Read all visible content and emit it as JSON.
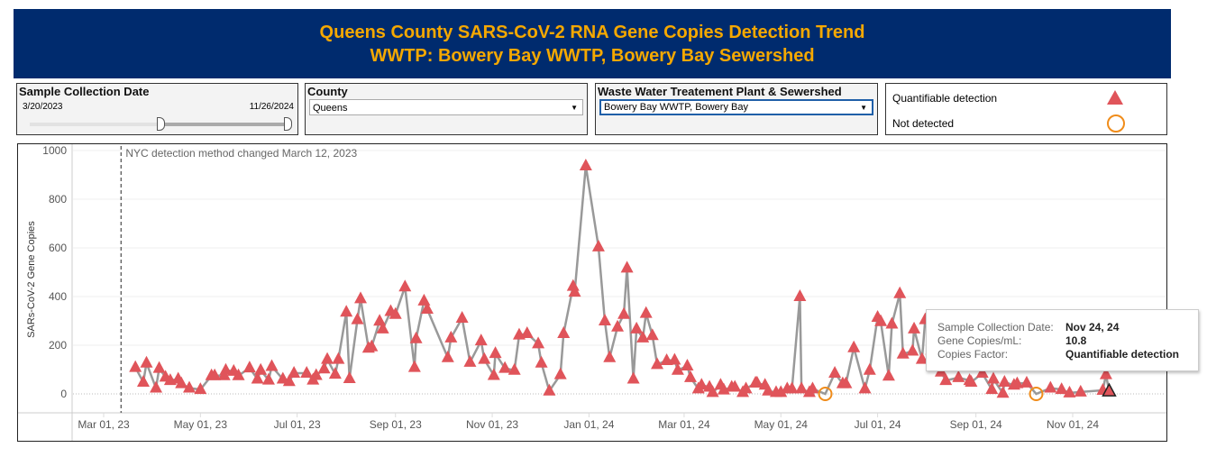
{
  "header": {
    "title_line1": "Queens County SARS-CoV-2 RNA Gene Copies Detection Trend",
    "title_line2": "WWTP: Bowery Bay WWTP, Bowery Bay Sewershed"
  },
  "filters": {
    "date": {
      "label": "Sample Collection Date",
      "start": "3/20/2023",
      "end": "11/26/2024",
      "selected_fraction_start": 0.5,
      "selected_fraction_end": 1.0
    },
    "county": {
      "label": "County",
      "value": "Queens"
    },
    "wwtp": {
      "label": "Waste Water Treatement Plant & Sewershed",
      "value": "Bowery Bay WWTP, Bowery Bay"
    }
  },
  "legend": {
    "items": [
      {
        "label": "Quantifiable detection",
        "code": "q"
      },
      {
        "label": "Not detected",
        "code": "nd"
      }
    ]
  },
  "colors": {
    "header_bg": "#002b6e",
    "title": "#f5a800",
    "triangle": "#e0545a",
    "circle": "#f08c1a",
    "line": "#999999"
  },
  "tooltip": {
    "date_label": "Sample Collection Date:",
    "date_value": "Nov 24, 24",
    "copies_label": "Gene Copies/mL:",
    "copies_value": "10.8",
    "factor_label": "Copies Factor:",
    "factor_value": "Quantifiable detection"
  },
  "chart_data": {
    "type": "line",
    "ylabel": "SARs-CoV-2 Gene Copies",
    "xlabel": "",
    "ylim": [
      0,
      1000
    ],
    "yticks": [
      0,
      200,
      400,
      600,
      800,
      1000
    ],
    "xticks": [
      {
        "date": "2023-03-01",
        "label": "Mar 01, 23"
      },
      {
        "date": "2023-05-01",
        "label": "May 01, 23"
      },
      {
        "date": "2023-07-01",
        "label": "Jul 01, 23"
      },
      {
        "date": "2023-09-01",
        "label": "Sep 01, 23"
      },
      {
        "date": "2023-11-01",
        "label": "Nov 01, 23"
      },
      {
        "date": "2024-01-01",
        "label": "Jan 01, 24"
      },
      {
        "date": "2024-03-01",
        "label": "Mar 01, 24"
      },
      {
        "date": "2024-05-01",
        "label": "May 01, 24"
      },
      {
        "date": "2024-07-01",
        "label": "Jul 01, 24"
      },
      {
        "date": "2024-09-01",
        "label": "Sep 01, 24"
      },
      {
        "date": "2024-11-01",
        "label": "Nov 01, 24"
      }
    ],
    "annotation": {
      "date": "2023-03-12",
      "text": "NYC detection method changed March 12, 2023"
    },
    "highlighted": "2024-11-24",
    "points": [
      [
        "2023-03-21",
        109,
        "q"
      ],
      [
        "2023-03-26",
        48,
        "q"
      ],
      [
        "2023-03-28",
        127,
        "q"
      ],
      [
        "2023-04-03",
        24,
        "q"
      ],
      [
        "2023-04-05",
        105,
        "q"
      ],
      [
        "2023-04-09",
        69,
        "q"
      ],
      [
        "2023-04-12",
        55,
        "q"
      ],
      [
        "2023-04-17",
        61,
        "q"
      ],
      [
        "2023-04-19",
        42,
        "q"
      ],
      [
        "2023-04-24",
        24,
        "q"
      ],
      [
        "2023-05-01",
        18,
        "q"
      ],
      [
        "2023-05-08",
        75,
        "q"
      ],
      [
        "2023-05-10",
        75,
        "q"
      ],
      [
        "2023-05-16",
        75,
        "q"
      ],
      [
        "2023-05-17",
        97,
        "q"
      ],
      [
        "2023-05-22",
        93,
        "q"
      ],
      [
        "2023-05-25",
        75,
        "q"
      ],
      [
        "2023-06-01",
        107,
        "q"
      ],
      [
        "2023-06-06",
        61,
        "q"
      ],
      [
        "2023-06-08",
        97,
        "q"
      ],
      [
        "2023-06-13",
        57,
        "q"
      ],
      [
        "2023-06-15",
        113,
        "q"
      ],
      [
        "2023-06-22",
        61,
        "q"
      ],
      [
        "2023-06-26",
        51,
        "q"
      ],
      [
        "2023-06-29",
        85,
        "q"
      ],
      [
        "2023-07-07",
        85,
        "q"
      ],
      [
        "2023-07-11",
        57,
        "q"
      ],
      [
        "2023-07-13",
        76,
        "q"
      ],
      [
        "2023-07-18",
        103,
        "q"
      ],
      [
        "2023-07-20",
        142,
        "q"
      ],
      [
        "2023-07-25",
        81,
        "q"
      ],
      [
        "2023-07-27",
        142,
        "q"
      ],
      [
        "2023-08-01",
        336,
        "q"
      ],
      [
        "2023-08-03",
        63,
        "q"
      ],
      [
        "2023-08-08",
        305,
        "q"
      ],
      [
        "2023-08-10",
        391,
        "q"
      ],
      [
        "2023-08-15",
        188,
        "q"
      ],
      [
        "2023-08-17",
        194,
        "q"
      ],
      [
        "2023-08-22",
        299,
        "q"
      ],
      [
        "2023-08-24",
        267,
        "q"
      ],
      [
        "2023-08-29",
        339,
        "q"
      ],
      [
        "2023-09-01",
        327,
        "q"
      ],
      [
        "2023-09-07",
        440,
        "q"
      ],
      [
        "2023-09-13",
        109,
        "q"
      ],
      [
        "2023-09-14",
        227,
        "q"
      ],
      [
        "2023-09-19",
        382,
        "q"
      ],
      [
        "2023-09-21",
        348,
        "q"
      ],
      [
        "2023-10-04",
        149,
        "q"
      ],
      [
        "2023-10-06",
        230,
        "q"
      ],
      [
        "2023-10-13",
        311,
        "q"
      ],
      [
        "2023-10-18",
        130,
        "q"
      ],
      [
        "2023-10-25",
        218,
        "q"
      ],
      [
        "2023-10-27",
        142,
        "q"
      ],
      [
        "2023-11-02",
        76,
        "q"
      ],
      [
        "2023-11-03",
        166,
        "q"
      ],
      [
        "2023-11-09",
        105,
        "q"
      ],
      [
        "2023-11-15",
        97,
        "q"
      ],
      [
        "2023-11-18",
        242,
        "q"
      ],
      [
        "2023-11-23",
        248,
        "q"
      ],
      [
        "2023-11-30",
        206,
        "q"
      ],
      [
        "2023-12-02",
        127,
        "q"
      ],
      [
        "2023-12-07",
        12,
        "q"
      ],
      [
        "2023-12-14",
        79,
        "q"
      ],
      [
        "2023-12-16",
        248,
        "q"
      ],
      [
        "2023-12-22",
        442,
        "q"
      ],
      [
        "2023-12-23",
        418,
        "q"
      ],
      [
        "2023-12-30",
        937,
        "q"
      ],
      [
        "2024-01-07",
        604,
        "q"
      ],
      [
        "2024-01-11",
        300,
        "q"
      ],
      [
        "2024-01-14",
        149,
        "q"
      ],
      [
        "2024-01-19",
        275,
        "q"
      ],
      [
        "2024-01-23",
        327,
        "q"
      ],
      [
        "2024-01-25",
        517,
        "q"
      ],
      [
        "2024-01-29",
        61,
        "q"
      ],
      [
        "2024-01-31",
        267,
        "q"
      ],
      [
        "2024-02-04",
        230,
        "q"
      ],
      [
        "2024-02-06",
        331,
        "q"
      ],
      [
        "2024-02-10",
        240,
        "q"
      ],
      [
        "2024-02-13",
        121,
        "q"
      ],
      [
        "2024-02-19",
        137,
        "q"
      ],
      [
        "2024-02-24",
        139,
        "q"
      ],
      [
        "2024-02-26",
        97,
        "q"
      ],
      [
        "2024-03-03",
        115,
        "q"
      ],
      [
        "2024-03-05",
        67,
        "q"
      ],
      [
        "2024-03-10",
        21,
        "q"
      ],
      [
        "2024-03-12",
        36,
        "q"
      ],
      [
        "2024-03-17",
        28,
        "q"
      ],
      [
        "2024-03-19",
        6,
        "q"
      ],
      [
        "2024-03-24",
        36,
        "q"
      ],
      [
        "2024-03-26",
        16,
        "q"
      ],
      [
        "2024-03-31",
        28,
        "q"
      ],
      [
        "2024-04-02",
        28,
        "q"
      ],
      [
        "2024-04-07",
        6,
        "q"
      ],
      [
        "2024-04-09",
        21,
        "q"
      ],
      [
        "2024-04-15",
        45,
        "q"
      ],
      [
        "2024-04-16",
        45,
        "q"
      ],
      [
        "2024-04-21",
        36,
        "q"
      ],
      [
        "2024-04-23",
        12,
        "q"
      ],
      [
        "2024-04-28",
        6,
        "q"
      ],
      [
        "2024-05-01",
        6,
        "q"
      ],
      [
        "2024-05-05",
        21,
        "q"
      ],
      [
        "2024-05-08",
        21,
        "q"
      ],
      [
        "2024-05-13",
        400,
        "q"
      ],
      [
        "2024-05-14",
        21,
        "q"
      ],
      [
        "2024-05-19",
        6,
        "q"
      ],
      [
        "2024-05-21",
        21,
        "q"
      ],
      [
        "2024-05-29",
        0,
        "nd"
      ],
      [
        "2024-06-04",
        85,
        "q"
      ],
      [
        "2024-06-09",
        42,
        "q"
      ],
      [
        "2024-06-11",
        42,
        "q"
      ],
      [
        "2024-06-16",
        190,
        "q"
      ],
      [
        "2024-06-23",
        21,
        "q"
      ],
      [
        "2024-06-26",
        97,
        "q"
      ],
      [
        "2024-07-01",
        315,
        "q"
      ],
      [
        "2024-07-03",
        297,
        "q"
      ],
      [
        "2024-07-08",
        73,
        "q"
      ],
      [
        "2024-07-10",
        287,
        "q"
      ],
      [
        "2024-07-15",
        412,
        "q"
      ],
      [
        "2024-07-17",
        164,
        "q"
      ],
      [
        "2024-07-23",
        176,
        "q"
      ],
      [
        "2024-07-24",
        267,
        "q"
      ],
      [
        "2024-07-29",
        142,
        "q"
      ],
      [
        "2024-07-31",
        305,
        "q"
      ],
      [
        "2024-08-04",
        180,
        "q"
      ],
      [
        "2024-08-07",
        120,
        "q"
      ],
      [
        "2024-08-10",
        90,
        "q"
      ],
      [
        "2024-08-13",
        55,
        "q"
      ],
      [
        "2024-08-21",
        67,
        "q"
      ],
      [
        "2024-08-28",
        55,
        "q"
      ],
      [
        "2024-08-29",
        48,
        "q"
      ],
      [
        "2024-09-05",
        85,
        "q"
      ],
      [
        "2024-09-11",
        18,
        "q"
      ],
      [
        "2024-09-12",
        61,
        "q"
      ],
      [
        "2024-09-18",
        3,
        "q"
      ],
      [
        "2024-09-19",
        48,
        "q"
      ],
      [
        "2024-09-25",
        36,
        "q"
      ],
      [
        "2024-09-27",
        42,
        "q"
      ],
      [
        "2024-10-03",
        45,
        "q"
      ],
      [
        "2024-10-09",
        0,
        "nd"
      ],
      [
        "2024-10-18",
        24,
        "q"
      ],
      [
        "2024-10-25",
        18,
        "q"
      ],
      [
        "2024-10-30",
        4,
        "q"
      ],
      [
        "2024-11-06",
        8,
        "q"
      ],
      [
        "2024-11-20",
        15,
        "q"
      ],
      [
        "2024-11-22",
        79,
        "q"
      ],
      [
        "2024-11-24",
        10.8,
        "q"
      ]
    ]
  }
}
